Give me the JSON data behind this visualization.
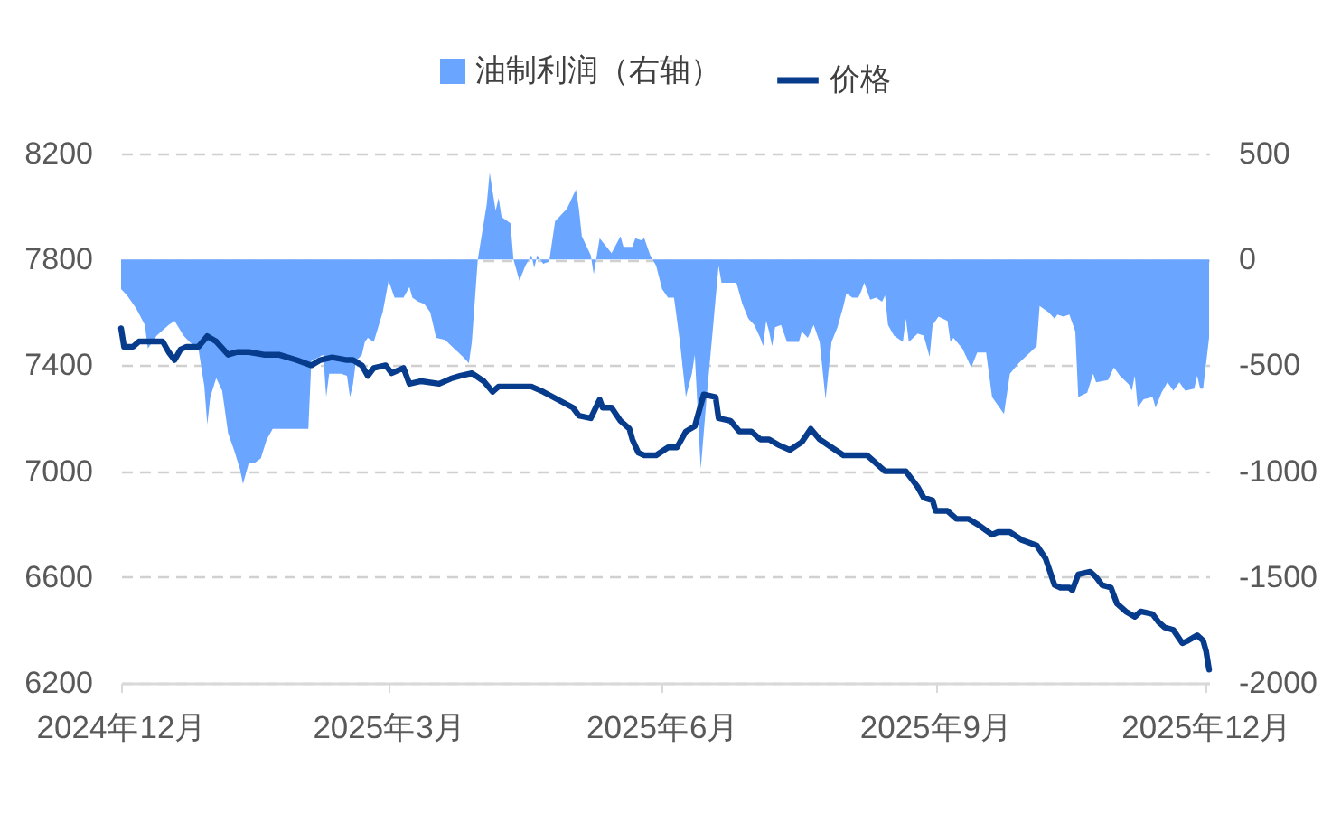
{
  "chart_data": {
    "type": "line",
    "xlim": [
      "2024-12-01",
      "2025-12-02"
    ],
    "xticks": [
      {
        "value": "2024-12-01",
        "label": "2024年12月"
      },
      {
        "value": "2025-03-01",
        "label": "2025年3月"
      },
      {
        "value": "2025-06-01",
        "label": "2025年6月"
      },
      {
        "value": "2025-09-01",
        "label": "2025年9月"
      },
      {
        "value": "2025-12-01",
        "label": "2025年12月"
      }
    ],
    "ylim": [
      6200,
      8200
    ],
    "yticks": [
      6200,
      6600,
      7000,
      7400,
      7800,
      8200
    ],
    "y2lim": [
      -2000,
      500
    ],
    "y2ticks": [
      -2000,
      -1500,
      -1000,
      -500,
      0,
      500
    ],
    "grid": "y",
    "legend": "top",
    "series": [
      {
        "name": "油制利润（右轴）",
        "type": "area",
        "axis": "y2",
        "color": "#6aa6ff",
        "x": [
          "2024-12-01",
          "2024-12-03",
          "2024-12-06",
          "2024-12-09",
          "2024-12-10",
          "2024-12-13",
          "2024-12-17",
          "2024-12-19",
          "2024-12-22",
          "2024-12-24",
          "2024-12-27",
          "2024-12-29",
          "2024-12-30",
          "2024-12-31",
          "2025-01-02",
          "2025-01-04",
          "2025-01-06",
          "2025-01-08",
          "2025-01-10",
          "2025-01-11",
          "2025-01-13",
          "2025-01-15",
          "2025-01-17",
          "2025-01-19",
          "2025-01-21",
          "2025-02-02",
          "2025-02-03",
          "2025-02-07",
          "2025-02-08",
          "2025-02-09",
          "2025-02-13",
          "2025-02-15",
          "2025-02-16",
          "2025-02-17",
          "2025-02-18",
          "2025-02-20",
          "2025-02-21",
          "2025-02-22",
          "2025-02-24",
          "2025-02-27",
          "2025-03-01",
          "2025-03-03",
          "2025-03-06",
          "2025-03-08",
          "2025-03-09",
          "2025-03-11",
          "2025-03-13",
          "2025-03-15",
          "2025-03-17",
          "2025-03-20",
          "2025-03-23",
          "2025-03-26",
          "2025-03-28",
          "2025-03-29",
          "2025-03-31",
          "2025-04-03",
          "2025-04-04",
          "2025-04-06",
          "2025-04-07",
          "2025-04-08",
          "2025-04-11",
          "2025-04-12",
          "2025-04-14",
          "2025-04-16",
          "2025-04-18",
          "2025-04-19",
          "2025-04-20",
          "2025-04-22",
          "2025-04-24",
          "2025-04-26",
          "2025-04-30",
          "2025-05-03",
          "2025-05-04",
          "2025-05-05",
          "2025-05-08",
          "2025-05-09",
          "2025-05-11",
          "2025-05-15",
          "2025-05-18",
          "2025-05-19",
          "2025-05-22",
          "2025-05-23",
          "2025-05-25",
          "2025-05-26",
          "2025-05-28",
          "2025-05-30",
          "2025-06-01",
          "2025-06-03",
          "2025-06-05",
          "2025-06-07",
          "2025-06-09",
          "2025-06-11",
          "2025-06-12",
          "2025-06-14",
          "2025-06-16",
          "2025-06-20",
          "2025-06-21",
          "2025-06-26",
          "2025-06-28",
          "2025-06-30",
          "2025-07-02",
          "2025-07-04",
          "2025-07-05",
          "2025-07-06",
          "2025-07-07",
          "2025-07-08",
          "2025-07-09",
          "2025-07-11",
          "2025-07-13",
          "2025-07-17",
          "2025-07-18",
          "2025-07-20",
          "2025-07-22",
          "2025-07-24",
          "2025-07-26",
          "2025-07-28",
          "2025-07-30",
          "2025-08-01",
          "2025-08-02",
          "2025-08-04",
          "2025-08-06",
          "2025-08-07",
          "2025-08-08",
          "2025-08-10",
          "2025-08-12",
          "2025-08-14",
          "2025-08-15",
          "2025-08-16",
          "2025-08-18",
          "2025-08-21",
          "2025-08-22",
          "2025-08-23",
          "2025-08-26",
          "2025-08-28",
          "2025-08-30",
          "2025-08-31",
          "2025-09-02",
          "2025-09-05",
          "2025-09-06",
          "2025-09-07",
          "2025-09-10",
          "2025-09-13",
          "2025-09-15",
          "2025-09-18",
          "2025-09-20",
          "2025-09-24",
          "2025-09-26",
          "2025-09-29",
          "2025-10-05",
          "2025-10-06",
          "2025-10-09",
          "2025-10-11",
          "2025-10-12",
          "2025-10-14",
          "2025-10-16",
          "2025-10-18",
          "2025-10-19",
          "2025-10-22",
          "2025-10-24",
          "2025-10-25",
          "2025-10-29",
          "2025-10-31",
          "2025-11-02",
          "2025-11-05",
          "2025-11-06",
          "2025-11-07",
          "2025-11-08",
          "2025-11-10",
          "2025-11-13",
          "2025-11-14",
          "2025-11-16",
          "2025-11-18",
          "2025-11-20",
          "2025-11-22",
          "2025-11-24",
          "2025-11-27",
          "2025-11-28",
          "2025-11-29",
          "2025-11-30",
          "2025-12-02"
        ],
        "values": [
          -140,
          -170,
          -230,
          -310,
          -420,
          -360,
          -310,
          -290,
          -360,
          -390,
          -420,
          -600,
          -780,
          -650,
          -560,
          -620,
          -820,
          -900,
          -990,
          -1060,
          -960,
          -960,
          -940,
          -850,
          -800,
          -800,
          -480,
          -450,
          -650,
          -540,
          -540,
          -550,
          -650,
          -590,
          -480,
          -450,
          -390,
          -370,
          -390,
          -250,
          -100,
          -180,
          -180,
          -130,
          -180,
          -200,
          -210,
          -250,
          -370,
          -380,
          -420,
          -460,
          -490,
          -390,
          0,
          260,
          410,
          230,
          290,
          200,
          170,
          0,
          -100,
          -30,
          20,
          -40,
          20,
          -20,
          -10,
          180,
          240,
          330,
          240,
          110,
          20,
          -70,
          100,
          30,
          110,
          60,
          60,
          100,
          90,
          100,
          20,
          -30,
          -140,
          -180,
          -180,
          -390,
          -650,
          -540,
          -450,
          -990,
          -650,
          -30,
          -110,
          -110,
          -210,
          -280,
          -310,
          -370,
          -410,
          -290,
          -340,
          -410,
          -320,
          -310,
          -390,
          -390,
          -340,
          -370,
          -310,
          -390,
          -660,
          -390,
          -320,
          -220,
          -160,
          -180,
          -180,
          -150,
          -110,
          -190,
          -180,
          -200,
          -170,
          -310,
          -360,
          -390,
          -280,
          -390,
          -350,
          -360,
          -460,
          -310,
          -270,
          -290,
          -390,
          -370,
          -420,
          -510,
          -440,
          -440,
          -650,
          -730,
          -540,
          -490,
          -410,
          -220,
          -250,
          -280,
          -260,
          -270,
          -260,
          -340,
          -650,
          -630,
          -540,
          -580,
          -570,
          -510,
          -550,
          -590,
          -620,
          -550,
          -700,
          -660,
          -650,
          -700,
          -630,
          -580,
          -620,
          -580,
          -620,
          -610,
          -550,
          -610,
          -610,
          -370
        ]
      },
      {
        "name": "价格",
        "color": "#073b8c",
        "x": [
          "2024-12-01",
          "2024-12-02",
          "2024-12-05",
          "2024-12-07",
          "2024-12-13",
          "2024-12-15",
          "2024-12-17",
          "2024-12-19",
          "2024-12-21",
          "2024-12-23",
          "2024-12-27",
          "2024-12-30",
          "2025-01-02",
          "2025-01-06",
          "2025-01-09",
          "2025-01-13",
          "2025-01-18",
          "2025-01-23",
          "2025-01-29",
          "2025-02-03",
          "2025-02-06",
          "2025-02-10",
          "2025-02-15",
          "2025-02-17",
          "2025-02-20",
          "2025-02-22",
          "2025-02-24",
          "2025-02-28",
          "2025-03-02",
          "2025-03-06",
          "2025-03-08",
          "2025-03-12",
          "2025-03-18",
          "2025-03-22",
          "2025-03-25",
          "2025-03-29",
          "2025-04-02",
          "2025-04-05",
          "2025-04-07",
          "2025-04-11",
          "2025-04-18",
          "2025-04-22",
          "2025-04-27",
          "2025-05-02",
          "2025-05-04",
          "2025-05-08",
          "2025-05-11",
          "2025-05-12",
          "2025-05-15",
          "2025-05-18",
          "2025-05-21",
          "2025-05-22",
          "2025-05-24",
          "2025-05-26",
          "2025-05-30",
          "2025-06-03",
          "2025-06-06",
          "2025-06-09",
          "2025-06-12",
          "2025-06-15",
          "2025-06-19",
          "2025-06-20",
          "2025-06-24",
          "2025-06-27",
          "2025-07-01",
          "2025-07-04",
          "2025-07-07",
          "2025-07-10",
          "2025-07-14",
          "2025-07-18",
          "2025-07-21",
          "2025-07-24",
          "2025-07-28",
          "2025-08-01",
          "2025-08-05",
          "2025-08-09",
          "2025-08-12",
          "2025-08-15",
          "2025-08-18",
          "2025-08-22",
          "2025-08-26",
          "2025-08-28",
          "2025-08-31",
          "2025-09-01",
          "2025-09-05",
          "2025-09-08",
          "2025-09-12",
          "2025-09-15",
          "2025-09-20",
          "2025-09-22",
          "2025-09-26",
          "2025-09-30",
          "2025-10-05",
          "2025-10-08",
          "2025-10-11",
          "2025-10-13",
          "2025-10-16",
          "2025-10-17",
          "2025-10-19",
          "2025-10-23",
          "2025-10-25",
          "2025-10-27",
          "2025-10-30",
          "2025-11-01",
          "2025-11-04",
          "2025-11-07",
          "2025-11-09",
          "2025-11-13",
          "2025-11-15",
          "2025-11-17",
          "2025-11-20",
          "2025-11-23",
          "2025-11-25",
          "2025-11-28",
          "2025-11-30",
          "2025-12-01",
          "2025-12-02"
        ],
        "values": [
          7540,
          7470,
          7470,
          7490,
          7490,
          7490,
          7450,
          7420,
          7460,
          7470,
          7470,
          7510,
          7490,
          7440,
          7450,
          7450,
          7440,
          7440,
          7420,
          7400,
          7420,
          7430,
          7420,
          7420,
          7400,
          7360,
          7390,
          7400,
          7370,
          7390,
          7330,
          7340,
          7330,
          7350,
          7360,
          7370,
          7340,
          7300,
          7320,
          7320,
          7320,
          7300,
          7270,
          7240,
          7210,
          7200,
          7270,
          7240,
          7240,
          7190,
          7160,
          7120,
          7070,
          7060,
          7060,
          7090,
          7090,
          7150,
          7170,
          7290,
          7280,
          7200,
          7190,
          7150,
          7150,
          7120,
          7120,
          7100,
          7080,
          7110,
          7160,
          7120,
          7090,
          7060,
          7060,
          7060,
          7030,
          7000,
          7000,
          7000,
          6940,
          6900,
          6890,
          6850,
          6850,
          6820,
          6820,
          6800,
          6760,
          6770,
          6770,
          6740,
          6720,
          6670,
          6570,
          6560,
          6560,
          6550,
          6610,
          6620,
          6600,
          6570,
          6560,
          6500,
          6470,
          6450,
          6470,
          6460,
          6430,
          6410,
          6400,
          6350,
          6360,
          6380,
          6360,
          6320,
          6250
        ]
      }
    ]
  }
}
